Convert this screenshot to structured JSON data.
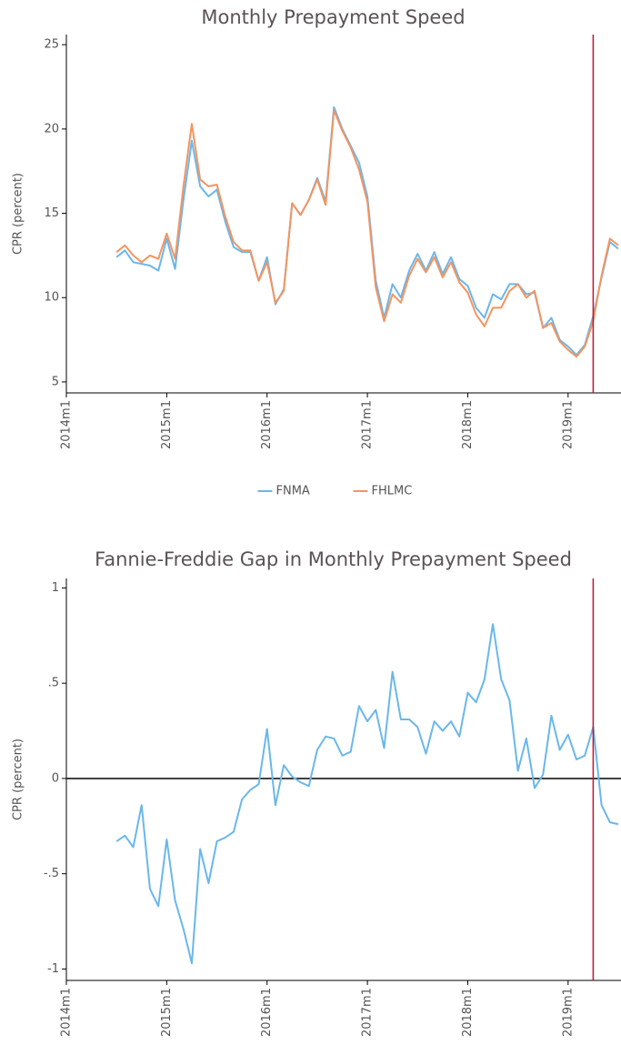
{
  "chart_data": [
    {
      "type": "line",
      "title": "Monthly Prepayment Speed",
      "ylabel": "CPR (percent)",
      "x": [
        "2014m7",
        "2014m8",
        "2014m9",
        "2014m10",
        "2014m11",
        "2014m12",
        "2015m1",
        "2015m2",
        "2015m3",
        "2015m4",
        "2015m5",
        "2015m6",
        "2015m7",
        "2015m8",
        "2015m9",
        "2015m10",
        "2015m11",
        "2015m12",
        "2016m1",
        "2016m2",
        "2016m3",
        "2016m4",
        "2016m5",
        "2016m6",
        "2016m7",
        "2016m8",
        "2016m9",
        "2016m10",
        "2016m11",
        "2016m12",
        "2017m1",
        "2017m2",
        "2017m3",
        "2017m4",
        "2017m5",
        "2017m6",
        "2017m7",
        "2017m8",
        "2017m9",
        "2017m10",
        "2017m11",
        "2017m12",
        "2018m1",
        "2018m2",
        "2018m3",
        "2018m4",
        "2018m5",
        "2018m6",
        "2018m7",
        "2018m8",
        "2018m9",
        "2018m10",
        "2018m11",
        "2018m12",
        "2019m1",
        "2019m2",
        "2019m3",
        "2019m4",
        "2019m5",
        "2019m6",
        "2019m7"
      ],
      "series": [
        {
          "name": "FNMA",
          "color": "#6ab7ea",
          "values": [
            12.4,
            12.8,
            12.1,
            12.0,
            11.9,
            11.6,
            13.5,
            11.7,
            15.8,
            19.3,
            16.6,
            16.0,
            16.4,
            14.5,
            13.0,
            12.7,
            12.7,
            11.0,
            12.4,
            9.6,
            10.5,
            15.6,
            14.9,
            15.8,
            17.1,
            15.7,
            21.3,
            20.0,
            19.0,
            18.0,
            16.0,
            11.0,
            8.8,
            10.8,
            10.0,
            11.6,
            12.6,
            11.6,
            12.7,
            11.4,
            12.4,
            11.1,
            10.7,
            9.4,
            8.8,
            10.2,
            9.9,
            10.8,
            10.8,
            10.2,
            10.3,
            8.2,
            8.8,
            7.5,
            7.1,
            6.6,
            7.2,
            8.9,
            11.2,
            13.3,
            12.9
          ]
        },
        {
          "name": "FHLMC",
          "color": "#f4945f",
          "values": [
            12.7,
            13.1,
            12.5,
            12.1,
            12.5,
            12.3,
            13.8,
            12.3,
            16.6,
            20.3,
            17.0,
            16.6,
            16.7,
            14.8,
            13.3,
            12.8,
            12.8,
            11.0,
            12.1,
            9.7,
            10.4,
            15.6,
            14.9,
            15.8,
            17.0,
            15.5,
            21.1,
            19.9,
            18.9,
            17.6,
            15.7,
            10.6,
            8.6,
            10.2,
            9.7,
            11.3,
            12.3,
            11.5,
            12.4,
            11.2,
            12.1,
            10.9,
            10.3,
            9.0,
            8.3,
            9.4,
            9.4,
            10.4,
            10.8,
            10.0,
            10.4,
            8.2,
            8.5,
            7.4,
            6.9,
            6.5,
            7.1,
            8.6,
            11.3,
            13.5,
            13.1
          ]
        }
      ],
      "xlim": [
        "2014m1",
        "2019m7"
      ],
      "xticks": [
        "2014m1",
        "2015m1",
        "2016m1",
        "2017m1",
        "2018m1",
        "2019m1"
      ],
      "ylim": [
        4.35,
        25.6
      ],
      "yticks": [
        5,
        10,
        15,
        20,
        25
      ],
      "vline": "2019m4",
      "vline_color": "#c8102e",
      "legend": "bottom"
    },
    {
      "type": "line",
      "title": "Fannie-Freddie Gap in Monthly Prepayment Speed",
      "ylabel": "CPR (percent)",
      "x": [
        "2014m7",
        "2014m8",
        "2014m9",
        "2014m10",
        "2014m11",
        "2014m12",
        "2015m1",
        "2015m2",
        "2015m3",
        "2015m4",
        "2015m5",
        "2015m6",
        "2015m7",
        "2015m8",
        "2015m9",
        "2015m10",
        "2015m11",
        "2015m12",
        "2016m1",
        "2016m2",
        "2016m3",
        "2016m4",
        "2016m5",
        "2016m6",
        "2016m7",
        "2016m8",
        "2016m9",
        "2016m10",
        "2016m11",
        "2016m12",
        "2017m1",
        "2017m2",
        "2017m3",
        "2017m4",
        "2017m5",
        "2017m6",
        "2017m7",
        "2017m8",
        "2017m9",
        "2017m10",
        "2017m11",
        "2017m12",
        "2018m1",
        "2018m2",
        "2018m3",
        "2018m4",
        "2018m5",
        "2018m6",
        "2018m7",
        "2018m8",
        "2018m9",
        "2018m10",
        "2018m11",
        "2018m12",
        "2019m1",
        "2019m2",
        "2019m3",
        "2019m4",
        "2019m5",
        "2019m6",
        "2019m7"
      ],
      "color": "#6ab7ea",
      "values": [
        -0.33,
        -0.3,
        -0.36,
        -0.14,
        -0.58,
        -0.67,
        -0.32,
        -0.64,
        -0.79,
        -0.97,
        -0.37,
        -0.55,
        -0.33,
        -0.31,
        -0.28,
        -0.11,
        -0.06,
        -0.03,
        0.26,
        -0.14,
        0.07,
        0.01,
        -0.02,
        -0.04,
        0.15,
        0.22,
        0.21,
        0.12,
        0.14,
        0.38,
        0.3,
        0.36,
        0.16,
        0.56,
        0.31,
        0.31,
        0.27,
        0.13,
        0.3,
        0.25,
        0.3,
        0.22,
        0.45,
        0.4,
        0.52,
        0.81,
        0.52,
        0.41,
        0.04,
        0.21,
        -0.05,
        0.02,
        0.33,
        0.15,
        0.23,
        0.1,
        0.12,
        0.27,
        -0.14,
        -0.23,
        -0.24
      ],
      "xlim": [
        "2014m1",
        "2019m7"
      ],
      "xticks": [
        "2014m1",
        "2015m1",
        "2016m1",
        "2017m1",
        "2018m1",
        "2019m1"
      ],
      "ylim": [
        -1.06,
        1.05
      ],
      "yticks": [
        1,
        {
          "value": 0.5,
          "label": ".5"
        },
        0,
        {
          "value": -0.5,
          "label": "-.5"
        },
        -1
      ],
      "hline": 0,
      "vline": "2019m4",
      "vline_color": "#c8102e"
    }
  ]
}
